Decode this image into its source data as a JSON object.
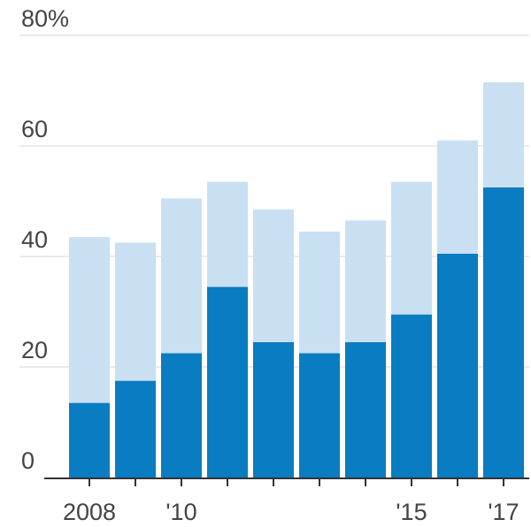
{
  "chart_data": {
    "type": "bar",
    "stacked": true,
    "categories": [
      "2008",
      "2009",
      "2010",
      "2011",
      "2012",
      "2013",
      "2014",
      "2015",
      "2016",
      "2017"
    ],
    "x_tick_labels": [
      {
        "category": "2008",
        "label": "2008"
      },
      {
        "category": "2010",
        "label": "'10"
      },
      {
        "category": "2015",
        "label": "'15"
      },
      {
        "category": "2017",
        "label": "'17"
      }
    ],
    "series": [
      {
        "values": [
          13.5,
          17.5,
          22.5,
          34.5,
          24.5,
          22.5,
          24.5,
          29.5,
          40.5,
          52.5
        ],
        "color": "#0a7cc1"
      },
      {
        "values": [
          30.0,
          25.0,
          28.0,
          19.0,
          24.0,
          22.0,
          22.0,
          24.0,
          20.5,
          19.0
        ],
        "color": "#c9e0f2"
      }
    ],
    "ylim": [
      0,
      80
    ],
    "y_ticks": [
      {
        "value": 0,
        "label": "0"
      },
      {
        "value": 20,
        "label": "20"
      },
      {
        "value": 40,
        "label": "40"
      },
      {
        "value": 60,
        "label": "60"
      },
      {
        "value": 80,
        "label": "80%"
      }
    ],
    "grid": true,
    "title": "",
    "xlabel": "",
    "ylabel": ""
  }
}
